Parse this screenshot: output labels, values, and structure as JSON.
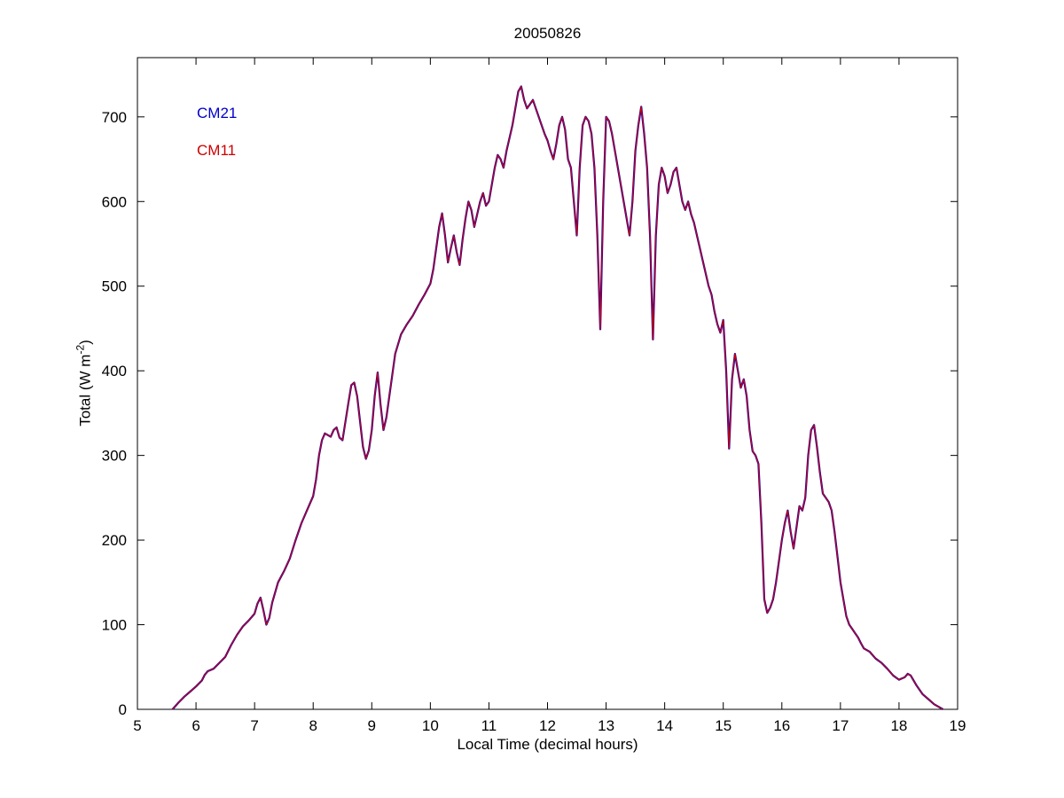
{
  "figure": {
    "title": "20050826",
    "xlabel": "Local Time (decimal hours)",
    "ylabel_prefix": "Total (W m",
    "ylabel_sup": "-2",
    "ylabel_suffix": ")"
  },
  "chart_data": {
    "type": "line",
    "title": "20050826",
    "xlabel": "Local Time (decimal hours)",
    "ylabel": "Total (W m^-2)",
    "xlim": [
      5,
      19
    ],
    "ylim": [
      0,
      770
    ],
    "xticks": [
      5,
      6,
      7,
      8,
      9,
      10,
      11,
      12,
      13,
      14,
      15,
      16,
      17,
      18,
      19
    ],
    "yticks": [
      0,
      100,
      200,
      300,
      400,
      500,
      600,
      700
    ],
    "grid": false,
    "legend": {
      "position": "upper-left-inside",
      "entries": [
        {
          "label": "CM21",
          "color": "#0000CC"
        },
        {
          "label": "CM11",
          "color": "#CC0000"
        }
      ]
    },
    "series": [
      {
        "name": "CM21",
        "color": "#0000CC",
        "stroke_width": 2.2
      },
      {
        "name": "CM11",
        "color": "#CC0000",
        "stroke_width": 1.2
      }
    ],
    "points_shared_by_both_series": true,
    "points": [
      [
        5.6,
        0
      ],
      [
        5.7,
        8
      ],
      [
        5.8,
        15
      ],
      [
        5.9,
        21
      ],
      [
        6.0,
        27
      ],
      [
        6.1,
        34
      ],
      [
        6.15,
        41
      ],
      [
        6.2,
        45
      ],
      [
        6.3,
        48
      ],
      [
        6.4,
        55
      ],
      [
        6.5,
        62
      ],
      [
        6.6,
        76
      ],
      [
        6.7,
        88
      ],
      [
        6.8,
        98
      ],
      [
        6.9,
        105
      ],
      [
        7.0,
        113
      ],
      [
        7.05,
        125
      ],
      [
        7.1,
        132
      ],
      [
        7.15,
        117
      ],
      [
        7.2,
        100
      ],
      [
        7.25,
        108
      ],
      [
        7.3,
        126
      ],
      [
        7.4,
        150
      ],
      [
        7.5,
        163
      ],
      [
        7.6,
        178
      ],
      [
        7.7,
        200
      ],
      [
        7.8,
        220
      ],
      [
        7.9,
        236
      ],
      [
        8.0,
        252
      ],
      [
        8.05,
        272
      ],
      [
        8.1,
        300
      ],
      [
        8.15,
        318
      ],
      [
        8.2,
        326
      ],
      [
        8.3,
        322
      ],
      [
        8.35,
        330
      ],
      [
        8.4,
        333
      ],
      [
        8.45,
        321
      ],
      [
        8.5,
        318
      ],
      [
        8.55,
        340
      ],
      [
        8.6,
        362
      ],
      [
        8.65,
        383
      ],
      [
        8.7,
        386
      ],
      [
        8.75,
        370
      ],
      [
        8.8,
        340
      ],
      [
        8.85,
        310
      ],
      [
        8.9,
        296
      ],
      [
        8.95,
        306
      ],
      [
        9.0,
        330
      ],
      [
        9.05,
        370
      ],
      [
        9.1,
        398
      ],
      [
        9.15,
        360
      ],
      [
        9.2,
        330
      ],
      [
        9.25,
        345
      ],
      [
        9.3,
        370
      ],
      [
        9.35,
        395
      ],
      [
        9.4,
        420
      ],
      [
        9.5,
        443
      ],
      [
        9.6,
        455
      ],
      [
        9.7,
        465
      ],
      [
        9.8,
        478
      ],
      [
        9.9,
        490
      ],
      [
        10.0,
        503
      ],
      [
        10.05,
        520
      ],
      [
        10.1,
        545
      ],
      [
        10.15,
        570
      ],
      [
        10.2,
        586
      ],
      [
        10.25,
        560
      ],
      [
        10.3,
        528
      ],
      [
        10.35,
        545
      ],
      [
        10.4,
        560
      ],
      [
        10.45,
        540
      ],
      [
        10.5,
        525
      ],
      [
        10.55,
        555
      ],
      [
        10.6,
        580
      ],
      [
        10.65,
        600
      ],
      [
        10.7,
        590
      ],
      [
        10.75,
        570
      ],
      [
        10.8,
        585
      ],
      [
        10.85,
        600
      ],
      [
        10.9,
        610
      ],
      [
        10.95,
        595
      ],
      [
        11.0,
        600
      ],
      [
        11.05,
        620
      ],
      [
        11.1,
        640
      ],
      [
        11.15,
        655
      ],
      [
        11.2,
        650
      ],
      [
        11.25,
        640
      ],
      [
        11.3,
        660
      ],
      [
        11.35,
        675
      ],
      [
        11.4,
        690
      ],
      [
        11.45,
        710
      ],
      [
        11.5,
        730
      ],
      [
        11.55,
        736
      ],
      [
        11.6,
        720
      ],
      [
        11.65,
        710
      ],
      [
        11.7,
        715
      ],
      [
        11.75,
        720
      ],
      [
        11.8,
        710
      ],
      [
        11.85,
        700
      ],
      [
        11.9,
        690
      ],
      [
        11.95,
        680
      ],
      [
        12.0,
        672
      ],
      [
        12.05,
        660
      ],
      [
        12.1,
        650
      ],
      [
        12.15,
        668
      ],
      [
        12.2,
        690
      ],
      [
        12.25,
        700
      ],
      [
        12.3,
        685
      ],
      [
        12.35,
        650
      ],
      [
        12.4,
        640
      ],
      [
        12.45,
        600
      ],
      [
        12.5,
        560
      ],
      [
        12.55,
        640
      ],
      [
        12.6,
        690
      ],
      [
        12.65,
        700
      ],
      [
        12.7,
        695
      ],
      [
        12.75,
        680
      ],
      [
        12.8,
        640
      ],
      [
        12.85,
        560
      ],
      [
        12.9,
        449
      ],
      [
        12.95,
        600
      ],
      [
        13.0,
        700
      ],
      [
        13.05,
        695
      ],
      [
        13.1,
        680
      ],
      [
        13.15,
        660
      ],
      [
        13.2,
        640
      ],
      [
        13.25,
        620
      ],
      [
        13.3,
        600
      ],
      [
        13.35,
        580
      ],
      [
        13.4,
        560
      ],
      [
        13.45,
        600
      ],
      [
        13.5,
        660
      ],
      [
        13.55,
        690
      ],
      [
        13.6,
        712
      ],
      [
        13.65,
        680
      ],
      [
        13.7,
        640
      ],
      [
        13.75,
        560
      ],
      [
        13.8,
        437
      ],
      [
        13.85,
        560
      ],
      [
        13.9,
        620
      ],
      [
        13.95,
        640
      ],
      [
        14.0,
        630
      ],
      [
        14.05,
        610
      ],
      [
        14.1,
        620
      ],
      [
        14.15,
        635
      ],
      [
        14.2,
        640
      ],
      [
        14.25,
        620
      ],
      [
        14.3,
        600
      ],
      [
        14.35,
        590
      ],
      [
        14.4,
        600
      ],
      [
        14.45,
        585
      ],
      [
        14.5,
        575
      ],
      [
        14.55,
        560
      ],
      [
        14.6,
        545
      ],
      [
        14.65,
        530
      ],
      [
        14.7,
        515
      ],
      [
        14.75,
        500
      ],
      [
        14.8,
        490
      ],
      [
        14.85,
        470
      ],
      [
        14.9,
        455
      ],
      [
        14.95,
        445
      ],
      [
        15.0,
        460
      ],
      [
        15.05,
        400
      ],
      [
        15.1,
        308
      ],
      [
        15.15,
        390
      ],
      [
        15.2,
        420
      ],
      [
        15.25,
        400
      ],
      [
        15.3,
        380
      ],
      [
        15.35,
        390
      ],
      [
        15.4,
        370
      ],
      [
        15.45,
        330
      ],
      [
        15.5,
        305
      ],
      [
        15.55,
        300
      ],
      [
        15.6,
        290
      ],
      [
        15.65,
        220
      ],
      [
        15.7,
        130
      ],
      [
        15.75,
        114
      ],
      [
        15.8,
        120
      ],
      [
        15.85,
        130
      ],
      [
        15.9,
        150
      ],
      [
        15.95,
        175
      ],
      [
        16.0,
        200
      ],
      [
        16.05,
        220
      ],
      [
        16.1,
        235
      ],
      [
        16.15,
        210
      ],
      [
        16.2,
        190
      ],
      [
        16.25,
        215
      ],
      [
        16.3,
        240
      ],
      [
        16.35,
        235
      ],
      [
        16.4,
        250
      ],
      [
        16.45,
        300
      ],
      [
        16.5,
        330
      ],
      [
        16.55,
        336
      ],
      [
        16.6,
        310
      ],
      [
        16.65,
        280
      ],
      [
        16.7,
        255
      ],
      [
        16.75,
        250
      ],
      [
        16.8,
        245
      ],
      [
        16.85,
        235
      ],
      [
        16.9,
        210
      ],
      [
        16.95,
        180
      ],
      [
        17.0,
        150
      ],
      [
        17.05,
        130
      ],
      [
        17.1,
        110
      ],
      [
        17.15,
        100
      ],
      [
        17.2,
        95
      ],
      [
        17.25,
        90
      ],
      [
        17.3,
        85
      ],
      [
        17.35,
        78
      ],
      [
        17.4,
        72
      ],
      [
        17.5,
        68
      ],
      [
        17.6,
        60
      ],
      [
        17.7,
        55
      ],
      [
        17.8,
        48
      ],
      [
        17.9,
        40
      ],
      [
        18.0,
        35
      ],
      [
        18.1,
        38
      ],
      [
        18.15,
        42
      ],
      [
        18.2,
        40
      ],
      [
        18.3,
        28
      ],
      [
        18.4,
        18
      ],
      [
        18.5,
        12
      ],
      [
        18.6,
        6
      ],
      [
        18.7,
        2
      ],
      [
        18.75,
        0
      ]
    ]
  }
}
